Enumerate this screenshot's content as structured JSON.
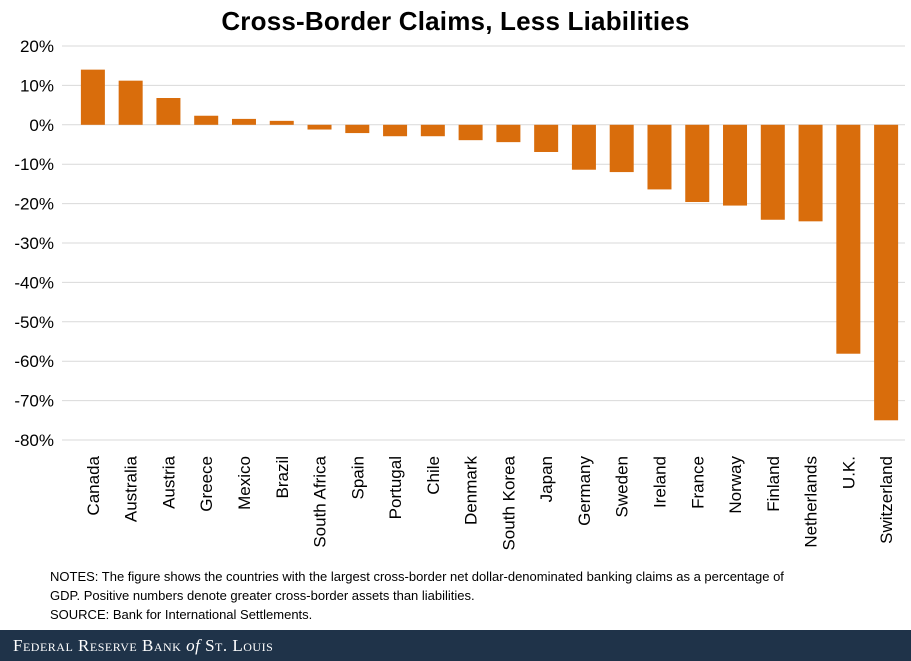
{
  "chart_data": {
    "type": "bar",
    "title": "Cross-Border Claims, Less Liabilities",
    "xlabel": "",
    "ylabel": "",
    "ylim": [
      -80,
      20
    ],
    "y_ticks": [
      20,
      10,
      0,
      -10,
      -20,
      -30,
      -40,
      -50,
      -60,
      -70,
      -80
    ],
    "y_tick_labels": [
      "20%",
      "10%",
      "0%",
      "-10%",
      "-20%",
      "-30%",
      "-40%",
      "-50%",
      "-60%",
      "-70%",
      "-80%"
    ],
    "grid": true,
    "bar_color": "#d96d0c",
    "grid_color": "#d9d9d9",
    "categories": [
      "Canada",
      "Australia",
      "Austria",
      "Greece",
      "Mexico",
      "Brazil",
      "South Africa",
      "Spain",
      "Portugal",
      "Chile",
      "Denmark",
      "South Korea",
      "Japan",
      "Germany",
      "Sweden",
      "Ireland",
      "France",
      "Norway",
      "Finland",
      "Netherlands",
      "U.K.",
      "Switzerland"
    ],
    "values": [
      14.0,
      11.2,
      6.8,
      2.3,
      1.5,
      1.0,
      -1.2,
      -2.1,
      -2.9,
      -2.9,
      -3.9,
      -4.4,
      -6.9,
      -11.4,
      -12.0,
      -16.4,
      -19.6,
      -20.5,
      -24.1,
      -24.5,
      -58.1,
      -75.0
    ]
  },
  "notes": {
    "line1": "NOTES: The figure shows the countries with the largest cross-border net dollar-denominated banking claims as a percentage of",
    "line2": "GDP. Positive numbers  denote greater cross-border assets than liabilities.",
    "source": "SOURCE: Bank for International  Settlements."
  },
  "footer": {
    "name_prefix": "Federal Reserve Bank",
    "name_of": "of",
    "name_suffix": "St. Louis",
    "bg_color": "#1f3349"
  }
}
